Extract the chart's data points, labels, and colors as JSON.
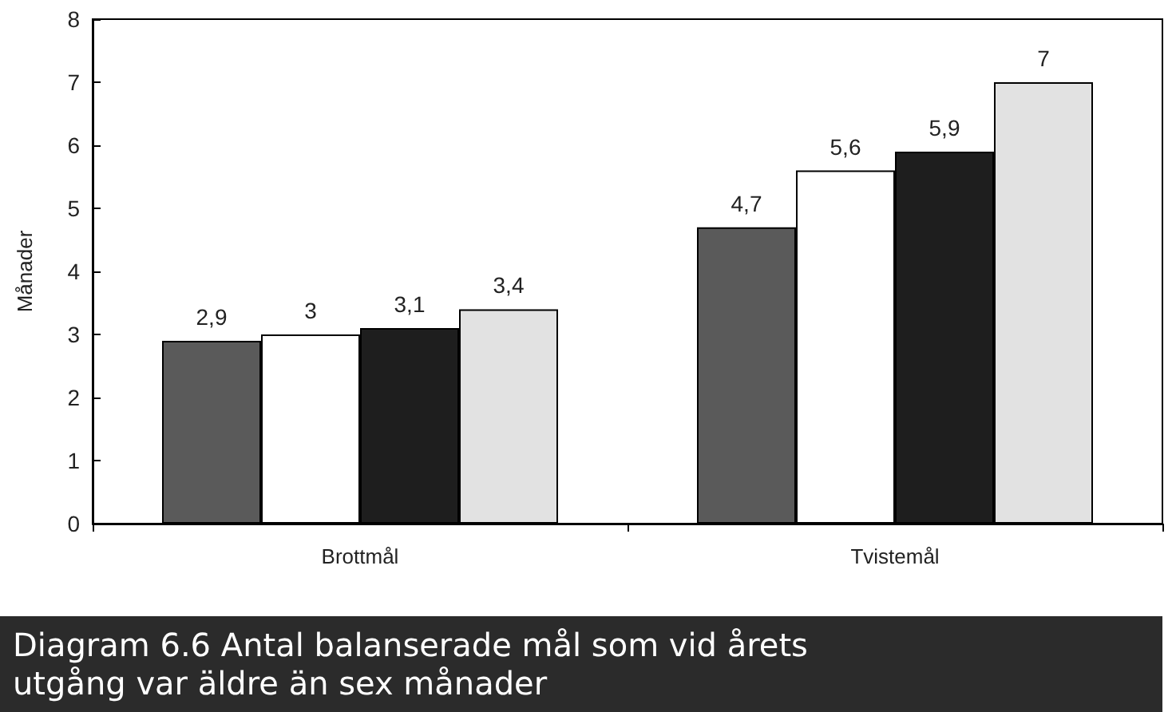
{
  "chart_data": {
    "type": "bar",
    "title": "Diagram 6.6 Antal balanserade mål som vid årets utgång var äldre än sex månader",
    "ylabel": "Månader",
    "categories": [
      "Brottmål",
      "Tvistemål"
    ],
    "series": [
      {
        "color": "#5a5a5a",
        "values": [
          2.9,
          4.7
        ],
        "value_labels": [
          "2,9",
          "4,7"
        ]
      },
      {
        "color": "#ffffff",
        "values": [
          3,
          5.6
        ],
        "value_labels": [
          "3",
          "5,6"
        ]
      },
      {
        "color": "#1e1e1e",
        "values": [
          3.1,
          5.9
        ],
        "value_labels": [
          "3,1",
          "5,9"
        ]
      },
      {
        "color": "#e2e2e2",
        "values": [
          3.4,
          7
        ],
        "value_labels": [
          "3,4",
          "7"
        ]
      }
    ],
    "ylim": [
      0,
      8
    ],
    "yticks": [
      0,
      1,
      2,
      3,
      4,
      5,
      6,
      7,
      8
    ],
    "grid": false
  }
}
